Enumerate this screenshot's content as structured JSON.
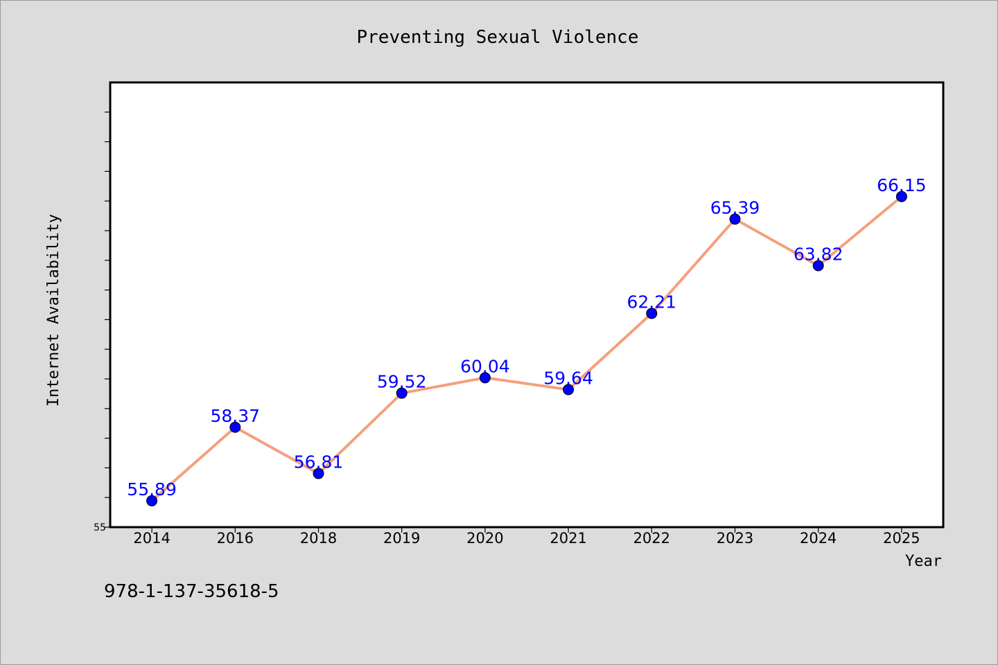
{
  "chart_data": {
    "type": "line",
    "title": "Preventing Sexual Violence",
    "xlabel": "Year",
    "ylabel": "Internet Availability",
    "categories": [
      "2014",
      "2016",
      "2018",
      "2019",
      "2020",
      "2021",
      "2022",
      "2023",
      "2024",
      "2025"
    ],
    "series": [
      {
        "values": [
          55.89,
          58.37,
          56.81,
          59.52,
          60.04,
          59.64,
          62.21,
          65.39,
          63.82,
          66.15
        ],
        "labels": [
          "55.89",
          "58.37",
          "56.81",
          "59.52",
          "60.04",
          "59.64",
          "62.21",
          "65.39",
          "63.82",
          "66.15"
        ]
      }
    ],
    "ylim": [
      55,
      70
    ],
    "yticks_shown": [
      "55"
    ],
    "grid": false,
    "colors": {
      "line": "#f4a07e",
      "marker": "#0000ff",
      "data_label": "#0000ff"
    }
  },
  "footer": {
    "text": "978-1-137-35618-5"
  }
}
